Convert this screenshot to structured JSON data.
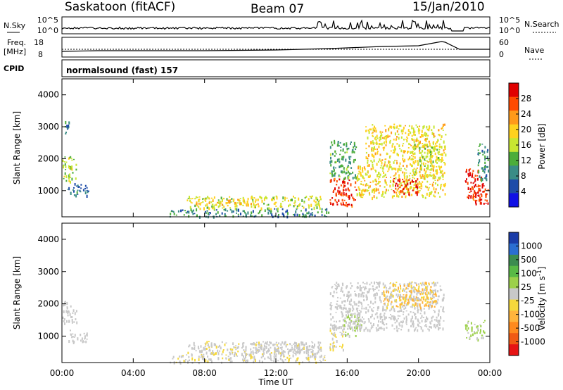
{
  "header": {
    "station": "Saskatoon (fitACF)",
    "beam": "Beam 07",
    "date": "15/Jan/2010"
  },
  "noise_panel": {
    "left_label": "N.Sky",
    "left_ticks": [
      "10^5",
      "10^0"
    ],
    "right_label": "N.Search",
    "right_ticks": [
      "10^5",
      "10^0"
    ]
  },
  "freq_panel": {
    "left_label_1": "Freq.",
    "left_label_2": "[MHz]",
    "left_ticks": [
      "18",
      "8"
    ],
    "right_label": "Nave",
    "right_ticks": [
      "60",
      "0"
    ]
  },
  "cpid_panel": {
    "label": "CPID",
    "text": "normalsound (fast) 157"
  },
  "axes": {
    "ylabel": "Slant Range [km]",
    "yticks": [
      "4000",
      "3000",
      "2000",
      "1000"
    ],
    "xticks": [
      "00:00",
      "04:00",
      "08:00",
      "12:00",
      "16:00",
      "20:00",
      "00:00"
    ],
    "xlabel": "Time UT"
  },
  "power_colorbar": {
    "label": "Power [dB]",
    "ticks": [
      "28",
      "24",
      "20",
      "16",
      "12",
      "8",
      "4"
    ],
    "colors": [
      "#e00000",
      "#ff4a00",
      "#ff9a1a",
      "#ffd21e",
      "#c8e632",
      "#4cad3a",
      "#3a8c86",
      "#1e4ca8",
      "#1010e6"
    ]
  },
  "velocity_colorbar": {
    "label": "Velocity [m s^-1]",
    "ticks": [
      "1000",
      "500",
      "100",
      "25",
      "-25",
      "-100",
      "-500",
      "-1000"
    ],
    "colors": [
      "#1a3ca8",
      "#2a6ed2",
      "#3c8c50",
      "#59b946",
      "#9cd04a",
      "#c8c8c8",
      "#f5d83c",
      "#ffb43c",
      "#ff8a1e",
      "#f05a14",
      "#e61414"
    ]
  },
  "chart_data": [
    {
      "type": "heatmap",
      "title": "Power",
      "xlabel": "Time UT",
      "ylabel": "Slant Range [km]",
      "xlim": [
        0,
        24
      ],
      "ylim": [
        180,
        4500
      ],
      "colorbar_label": "Power [dB]",
      "colorbar_range": [
        0,
        30
      ],
      "regions": [
        {
          "t": [
            0.1,
            0.5
          ],
          "r": [
            2800,
            3200
          ],
          "value": 8
        },
        {
          "t": [
            0.0,
            0.8
          ],
          "r": [
            1300,
            2100
          ],
          "value": 14
        },
        {
          "t": [
            0.3,
            1.5
          ],
          "r": [
            850,
            1250
          ],
          "value": 6
        },
        {
          "t": [
            6.0,
            15.0
          ],
          "r": [
            200,
            450
          ],
          "value": 8
        },
        {
          "t": [
            7.0,
            14.5
          ],
          "r": [
            450,
            850
          ],
          "value": 16
        },
        {
          "t": [
            7.5,
            11.0
          ],
          "r": [
            550,
            750
          ],
          "value": 20
        },
        {
          "t": [
            15.0,
            16.5
          ],
          "r": [
            550,
            1400
          ],
          "value": 28
        },
        {
          "t": [
            15.0,
            16.5
          ],
          "r": [
            1400,
            2600
          ],
          "value": 10
        },
        {
          "t": [
            16.5,
            21.5
          ],
          "r": [
            800,
            1800
          ],
          "value": 18
        },
        {
          "t": [
            17.0,
            21.5
          ],
          "r": [
            1800,
            3100
          ],
          "value": 18
        },
        {
          "t": [
            18.5,
            20.0
          ],
          "r": [
            900,
            1400
          ],
          "value": 28
        },
        {
          "t": [
            19.5,
            21.3
          ],
          "r": [
            1400,
            2500
          ],
          "value": 16
        },
        {
          "t": [
            22.6,
            23.5
          ],
          "r": [
            800,
            1700
          ],
          "value": 28
        },
        {
          "t": [
            22.9,
            23.9
          ],
          "r": [
            600,
            1300
          ],
          "value": 28
        },
        {
          "t": [
            23.3,
            23.9
          ],
          "r": [
            1300,
            2500
          ],
          "value": 8
        }
      ]
    },
    {
      "type": "heatmap",
      "title": "Velocity",
      "xlabel": "Time UT",
      "ylabel": "Slant Range [km]",
      "xlim": [
        0,
        24
      ],
      "ylim": [
        180,
        4500
      ],
      "colorbar_label": "Velocity [m s^-1]",
      "colorbar_range": [
        -1000,
        1000
      ],
      "regions": [
        {
          "t": [
            0.0,
            0.8
          ],
          "r": [
            1400,
            2100
          ],
          "value": 0
        },
        {
          "t": [
            0.3,
            1.4
          ],
          "r": [
            800,
            1200
          ],
          "value": 0
        },
        {
          "t": [
            7.0,
            14.5
          ],
          "r": [
            450,
            850
          ],
          "value": -60
        },
        {
          "t": [
            10.0,
            14.5
          ],
          "r": [
            450,
            850
          ],
          "value": 0
        },
        {
          "t": [
            6.0,
            15.0
          ],
          "r": [
            200,
            450
          ],
          "value": -60
        },
        {
          "t": [
            15.0,
            15.8
          ],
          "r": [
            600,
            1400
          ],
          "value": -80
        },
        {
          "t": [
            15.8,
            16.8
          ],
          "r": [
            1000,
            1800
          ],
          "value": 100
        },
        {
          "t": [
            15.0,
            21.4
          ],
          "r": [
            1200,
            2700
          ],
          "value": 0
        },
        {
          "t": [
            18.0,
            21.0
          ],
          "r": [
            1900,
            2700
          ],
          "value": -300
        },
        {
          "t": [
            22.6,
            23.7
          ],
          "r": [
            900,
            1500
          ],
          "value": 150
        }
      ]
    }
  ]
}
